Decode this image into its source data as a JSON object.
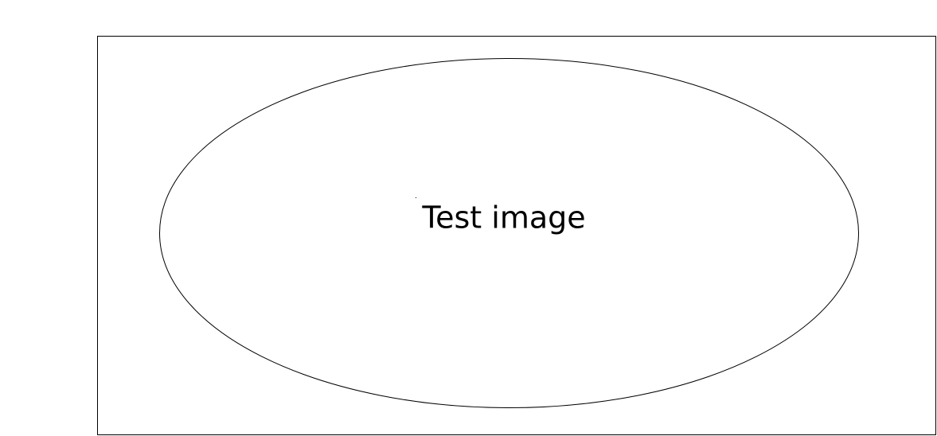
{
  "figure": {
    "label": "Test image",
    "colors": {
      "background": "#ffffff",
      "stroke": "#000000",
      "text": "#000000"
    }
  }
}
